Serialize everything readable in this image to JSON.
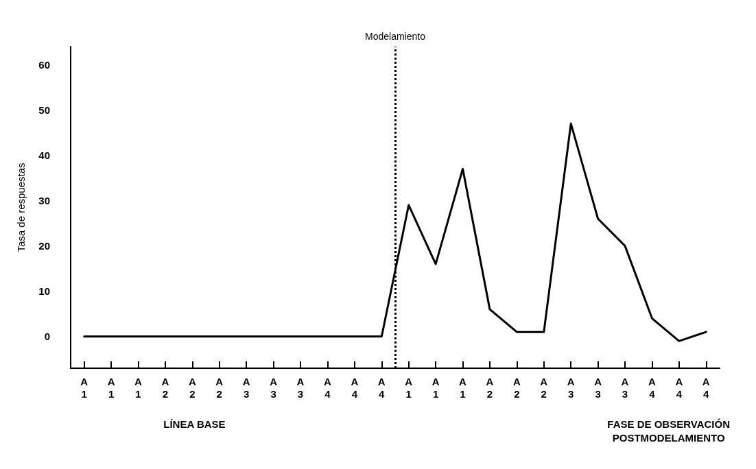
{
  "chart_data": {
    "type": "line",
    "ylabel": "Tasa de respuestas",
    "categories": [
      "A\n1",
      "A\n1",
      "A\n1",
      "A\n2",
      "A\n2",
      "A\n2",
      "A\n3",
      "A\n3",
      "A\n3",
      "A\n4",
      "A\n4",
      "A\n4",
      "A\n1",
      "A\n1",
      "A\n1",
      "A\n2",
      "A\n2",
      "A\n2",
      "A\n3",
      "A\n3",
      "A\n3",
      "A\n4",
      "A\n4",
      "A\n4"
    ],
    "values": [
      0,
      0,
      0,
      0,
      0,
      0,
      0,
      0,
      0,
      0,
      0,
      0,
      29,
      16,
      37,
      6,
      1,
      1,
      47,
      26,
      20,
      4,
      -1,
      1
    ],
    "color": "#000000",
    "ylim": [
      -7,
      64
    ],
    "yticks": [
      0,
      10,
      20,
      30,
      40,
      50,
      60
    ],
    "annotations": [
      "Modelamiento",
      "LÍNEA BASE",
      "FASE DE OBSERVACIÓN\nPOSTMODELAMIENTO"
    ],
    "grid": false,
    "line_style": "solid"
  }
}
